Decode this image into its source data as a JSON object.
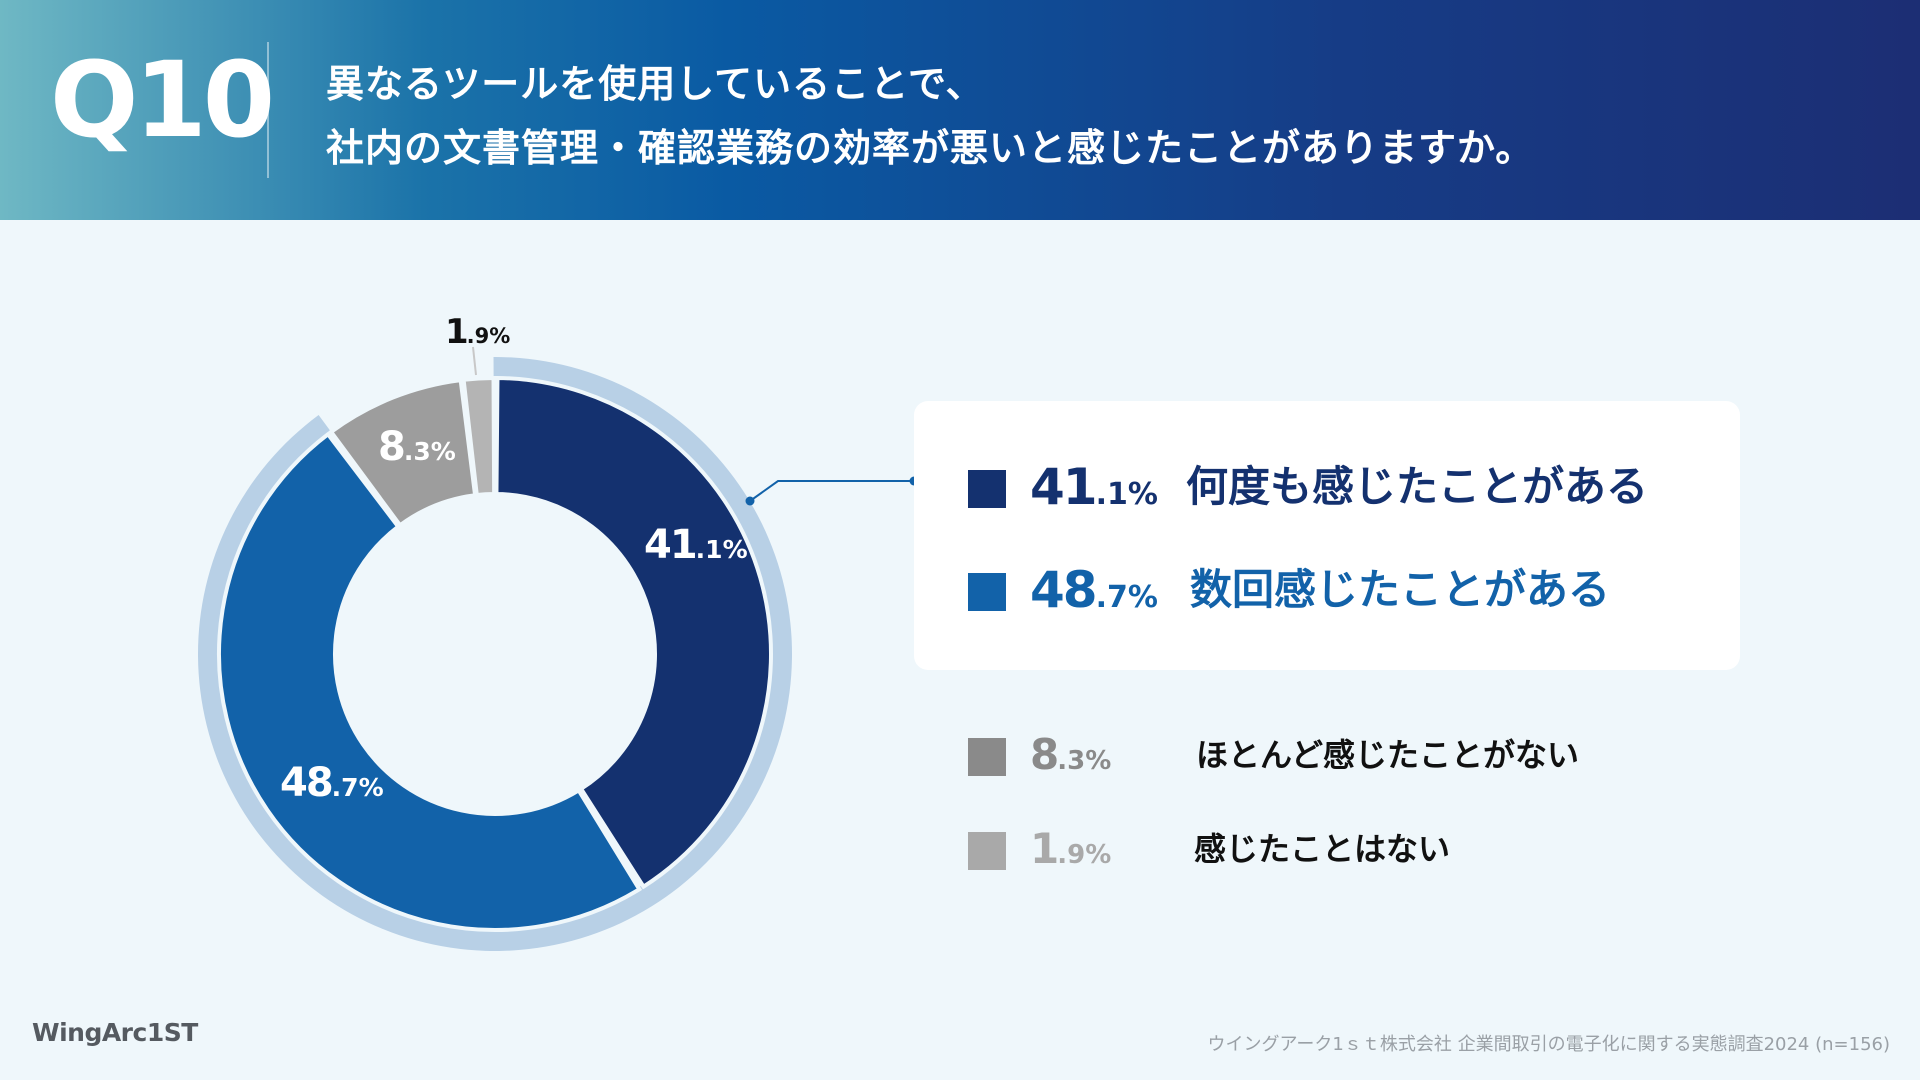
{
  "header": {
    "question_number": "Q10",
    "question_line1": "異なるツールを使用していることで、",
    "question_line2": "社内の文書管理・確認業務の効率が悪いと感じたことがありますか。"
  },
  "chart_data": {
    "type": "pie",
    "variant": "donut",
    "categories": [
      "何度も感じたことがある",
      "数回感じたことがある",
      "ほとんど感じたことがない",
      "感じたことはない"
    ],
    "values": [
      41.1,
      48.7,
      8.3,
      1.9
    ],
    "value_labels": [
      {
        "int": "41",
        "dec": ".1%"
      },
      {
        "int": "48",
        "dec": ".7%"
      },
      {
        "int": "8",
        "dec": ".3%"
      },
      {
        "int": "1",
        "dec": ".9%"
      }
    ],
    "colors": [
      "#14316f",
      "#1262a9",
      "#9d9d9d",
      "#b4b4b4"
    ],
    "highlight_ring_color": "#b8d0e6",
    "highlighted_categories": [
      0,
      1
    ],
    "legend_placement": "right"
  },
  "legend": {
    "items": [
      {
        "int": "41",
        "dec": ".1%",
        "label": "何度も感じたことがある",
        "color": "#14316f",
        "text_color": "#14316f"
      },
      {
        "int": "48",
        "dec": ".7%",
        "label": "数回感じたことがある",
        "color": "#1262a9",
        "text_color": "#1262a9"
      },
      {
        "int": "8",
        "dec": ".3%",
        "label": "ほとんど感じたことがない",
        "color": "#8a8a8a",
        "text_color": "#8a8a8a"
      },
      {
        "int": "1",
        "dec": ".9%",
        "label": "感じたことはない",
        "color": "#a9a9a9",
        "text_color": "#a9a9a9"
      }
    ]
  },
  "footer": {
    "logo": "WingArc1ST",
    "source_note": "ウイングアーク1ｓｔ株式会社 企業間取引の電子化に関する実態調査2024 (n=156)"
  }
}
